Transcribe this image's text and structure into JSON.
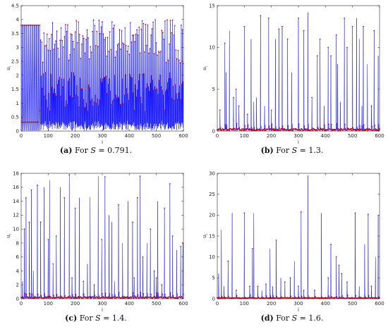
{
  "panels": [
    {
      "id": "a",
      "caption": {
        "letter": "(a)",
        "prefix": "For ",
        "var": "S",
        "eq": " = 0.791."
      },
      "chart_data": {
        "type": "line",
        "xlabel": "i",
        "ylabel": "u",
        "ylabel_sub": "i",
        "xlim": [
          0,
          600
        ],
        "ylim": [
          0,
          4.5
        ],
        "xticks": [
          0,
          100,
          200,
          300,
          400,
          500,
          600
        ],
        "yticks": [
          0,
          0.5,
          1,
          1.5,
          2,
          2.5,
          3,
          3.5,
          4,
          4.5
        ],
        "line_color": "#0000ff",
        "marker_color": "#c00000",
        "grid": false,
        "regime": "bounded",
        "max_value": 4.0,
        "initial_levels": [
          3.8,
          1.78,
          0.32,
          0.02
        ]
      }
    },
    {
      "id": "b",
      "caption": {
        "letter": "(b)",
        "prefix": "For ",
        "var": "S",
        "eq": " = 1.3."
      },
      "chart_data": {
        "type": "line",
        "xlabel": "i",
        "ylabel": "u",
        "ylabel_sub": "i",
        "xlim": [
          0,
          600
        ],
        "ylim": [
          0,
          15
        ],
        "xticks": [
          0,
          100,
          200,
          300,
          400,
          500,
          600
        ],
        "yticks": [
          0,
          5,
          10,
          15
        ],
        "line_color": "#0000ff",
        "marker_color": "#c00000",
        "grid": false,
        "regime": "spiky",
        "peaks": [
          [
            10,
            2.5
          ],
          [
            28,
            10.5
          ],
          [
            33,
            7.0
          ],
          [
            45,
            12.0
          ],
          [
            60,
            4.0
          ],
          [
            70,
            5.0
          ],
          [
            80,
            3.0
          ],
          [
            100,
            12.5
          ],
          [
            112,
            2.0
          ],
          [
            125,
            11.0
          ],
          [
            135,
            3.5
          ],
          [
            145,
            4.0
          ],
          [
            160,
            13.8
          ],
          [
            175,
            3.0
          ],
          [
            190,
            13.5
          ],
          [
            200,
            2.5
          ],
          [
            215,
            11.0
          ],
          [
            228,
            12.2
          ],
          [
            240,
            12.5
          ],
          [
            260,
            11.0
          ],
          [
            275,
            7.0
          ],
          [
            300,
            13.5
          ],
          [
            320,
            12.0
          ],
          [
            335,
            14.2
          ],
          [
            350,
            4.0
          ],
          [
            370,
            9.0
          ],
          [
            380,
            11.0
          ],
          [
            395,
            3.0
          ],
          [
            410,
            10.0
          ],
          [
            420,
            9.0
          ],
          [
            440,
            11.5
          ],
          [
            445,
            8.0
          ],
          [
            455,
            3.5
          ],
          [
            470,
            13.5
          ],
          [
            480,
            10.0
          ],
          [
            500,
            12.5
          ],
          [
            515,
            13.5
          ],
          [
            525,
            11.0
          ],
          [
            535,
            3.0
          ],
          [
            540,
            12.5
          ],
          [
            555,
            8.0
          ],
          [
            570,
            3.0
          ],
          [
            580,
            12.0
          ],
          [
            595,
            9.0
          ]
        ]
      }
    },
    {
      "id": "c",
      "caption": {
        "letter": "(c)",
        "prefix": "For ",
        "var": "S",
        "eq": " = 1.4."
      },
      "chart_data": {
        "type": "line",
        "xlabel": "i",
        "ylabel": "u",
        "ylabel_sub": "i",
        "xlim": [
          0,
          600
        ],
        "ylim": [
          0,
          18
        ],
        "xticks": [
          0,
          100,
          200,
          300,
          400,
          500,
          600
        ],
        "yticks": [
          0,
          2,
          4,
          6,
          8,
          10,
          12,
          14,
          16,
          18
        ],
        "line_color": "#0000ff",
        "marker_color": "#c00000",
        "grid": false,
        "regime": "spiky",
        "peaks": [
          [
            5,
            2.5
          ],
          [
            12,
            10.0
          ],
          [
            18,
            14.5
          ],
          [
            30,
            11.0
          ],
          [
            38,
            15.6
          ],
          [
            45,
            4.0
          ],
          [
            60,
            16.3
          ],
          [
            72,
            11.0
          ],
          [
            85,
            16.0
          ],
          [
            100,
            8.5
          ],
          [
            105,
            17.0
          ],
          [
            118,
            5.0
          ],
          [
            130,
            9.0
          ],
          [
            145,
            16.0
          ],
          [
            160,
            14.5
          ],
          [
            178,
            17.8
          ],
          [
            188,
            3.0
          ],
          [
            200,
            13.0
          ],
          [
            215,
            14.5
          ],
          [
            230,
            2.5
          ],
          [
            245,
            5.0
          ],
          [
            255,
            14.6
          ],
          [
            270,
            2.0
          ],
          [
            285,
            17.6
          ],
          [
            298,
            8.5
          ],
          [
            310,
            17.5
          ],
          [
            325,
            12.0
          ],
          [
            335,
            11.0
          ],
          [
            345,
            2.5
          ],
          [
            360,
            13.5
          ],
          [
            375,
            8.0
          ],
          [
            395,
            14.0
          ],
          [
            412,
            11.0
          ],
          [
            418,
            3.0
          ],
          [
            430,
            14.5
          ],
          [
            440,
            17.6
          ],
          [
            450,
            6.0
          ],
          [
            465,
            8.0
          ],
          [
            478,
            10.0
          ],
          [
            492,
            4.0
          ],
          [
            500,
            3.0
          ],
          [
            505,
            14.0
          ],
          [
            520,
            2.0
          ],
          [
            530,
            13.0
          ],
          [
            550,
            16.5
          ],
          [
            560,
            9.0
          ],
          [
            575,
            7.0
          ],
          [
            590,
            7.5
          ],
          [
            598,
            8.0
          ]
        ]
      }
    },
    {
      "id": "d",
      "caption": {
        "letter": "(d)",
        "prefix": "For ",
        "var": "S",
        "eq": " = 1.6."
      },
      "chart_data": {
        "type": "line",
        "xlabel": "i",
        "ylabel": "u",
        "ylabel_sub": "i",
        "xlim": [
          0,
          600
        ],
        "ylim": [
          0,
          30
        ],
        "xticks": [
          0,
          100,
          200,
          300,
          400,
          500,
          600
        ],
        "yticks": [
          0,
          5,
          10,
          15,
          20,
          25,
          30
        ],
        "line_color": "#0000ff",
        "marker_color": "#c00000",
        "grid": false,
        "regime": "spiky",
        "peaks": [
          [
            5,
            6.0
          ],
          [
            15,
            16.5
          ],
          [
            25,
            3.0
          ],
          [
            40,
            9.0
          ],
          [
            55,
            20.5
          ],
          [
            70,
            2.0
          ],
          [
            100,
            20.5
          ],
          [
            120,
            3.0
          ],
          [
            130,
            12.0
          ],
          [
            135,
            20.5
          ],
          [
            150,
            3.0
          ],
          [
            165,
            2.0
          ],
          [
            180,
            3.5
          ],
          [
            195,
            12.0
          ],
          [
            205,
            3.0
          ],
          [
            218,
            14.0
          ],
          [
            235,
            5.0
          ],
          [
            250,
            4.0
          ],
          [
            270,
            5.0
          ],
          [
            285,
            9.0
          ],
          [
            300,
            3.0
          ],
          [
            310,
            20.8
          ],
          [
            320,
            2.0
          ],
          [
            335,
            29.5
          ],
          [
            360,
            2.0
          ],
          [
            385,
            20.5
          ],
          [
            410,
            5.0
          ],
          [
            420,
            13.0
          ],
          [
            440,
            10.0
          ],
          [
            450,
            8.0
          ],
          [
            460,
            6.0
          ],
          [
            480,
            4.0
          ],
          [
            510,
            20.5
          ],
          [
            525,
            3.0
          ],
          [
            545,
            13.0
          ],
          [
            558,
            20.2
          ],
          [
            570,
            3.0
          ],
          [
            585,
            10.0
          ],
          [
            595,
            20.0
          ]
        ]
      }
    }
  ]
}
